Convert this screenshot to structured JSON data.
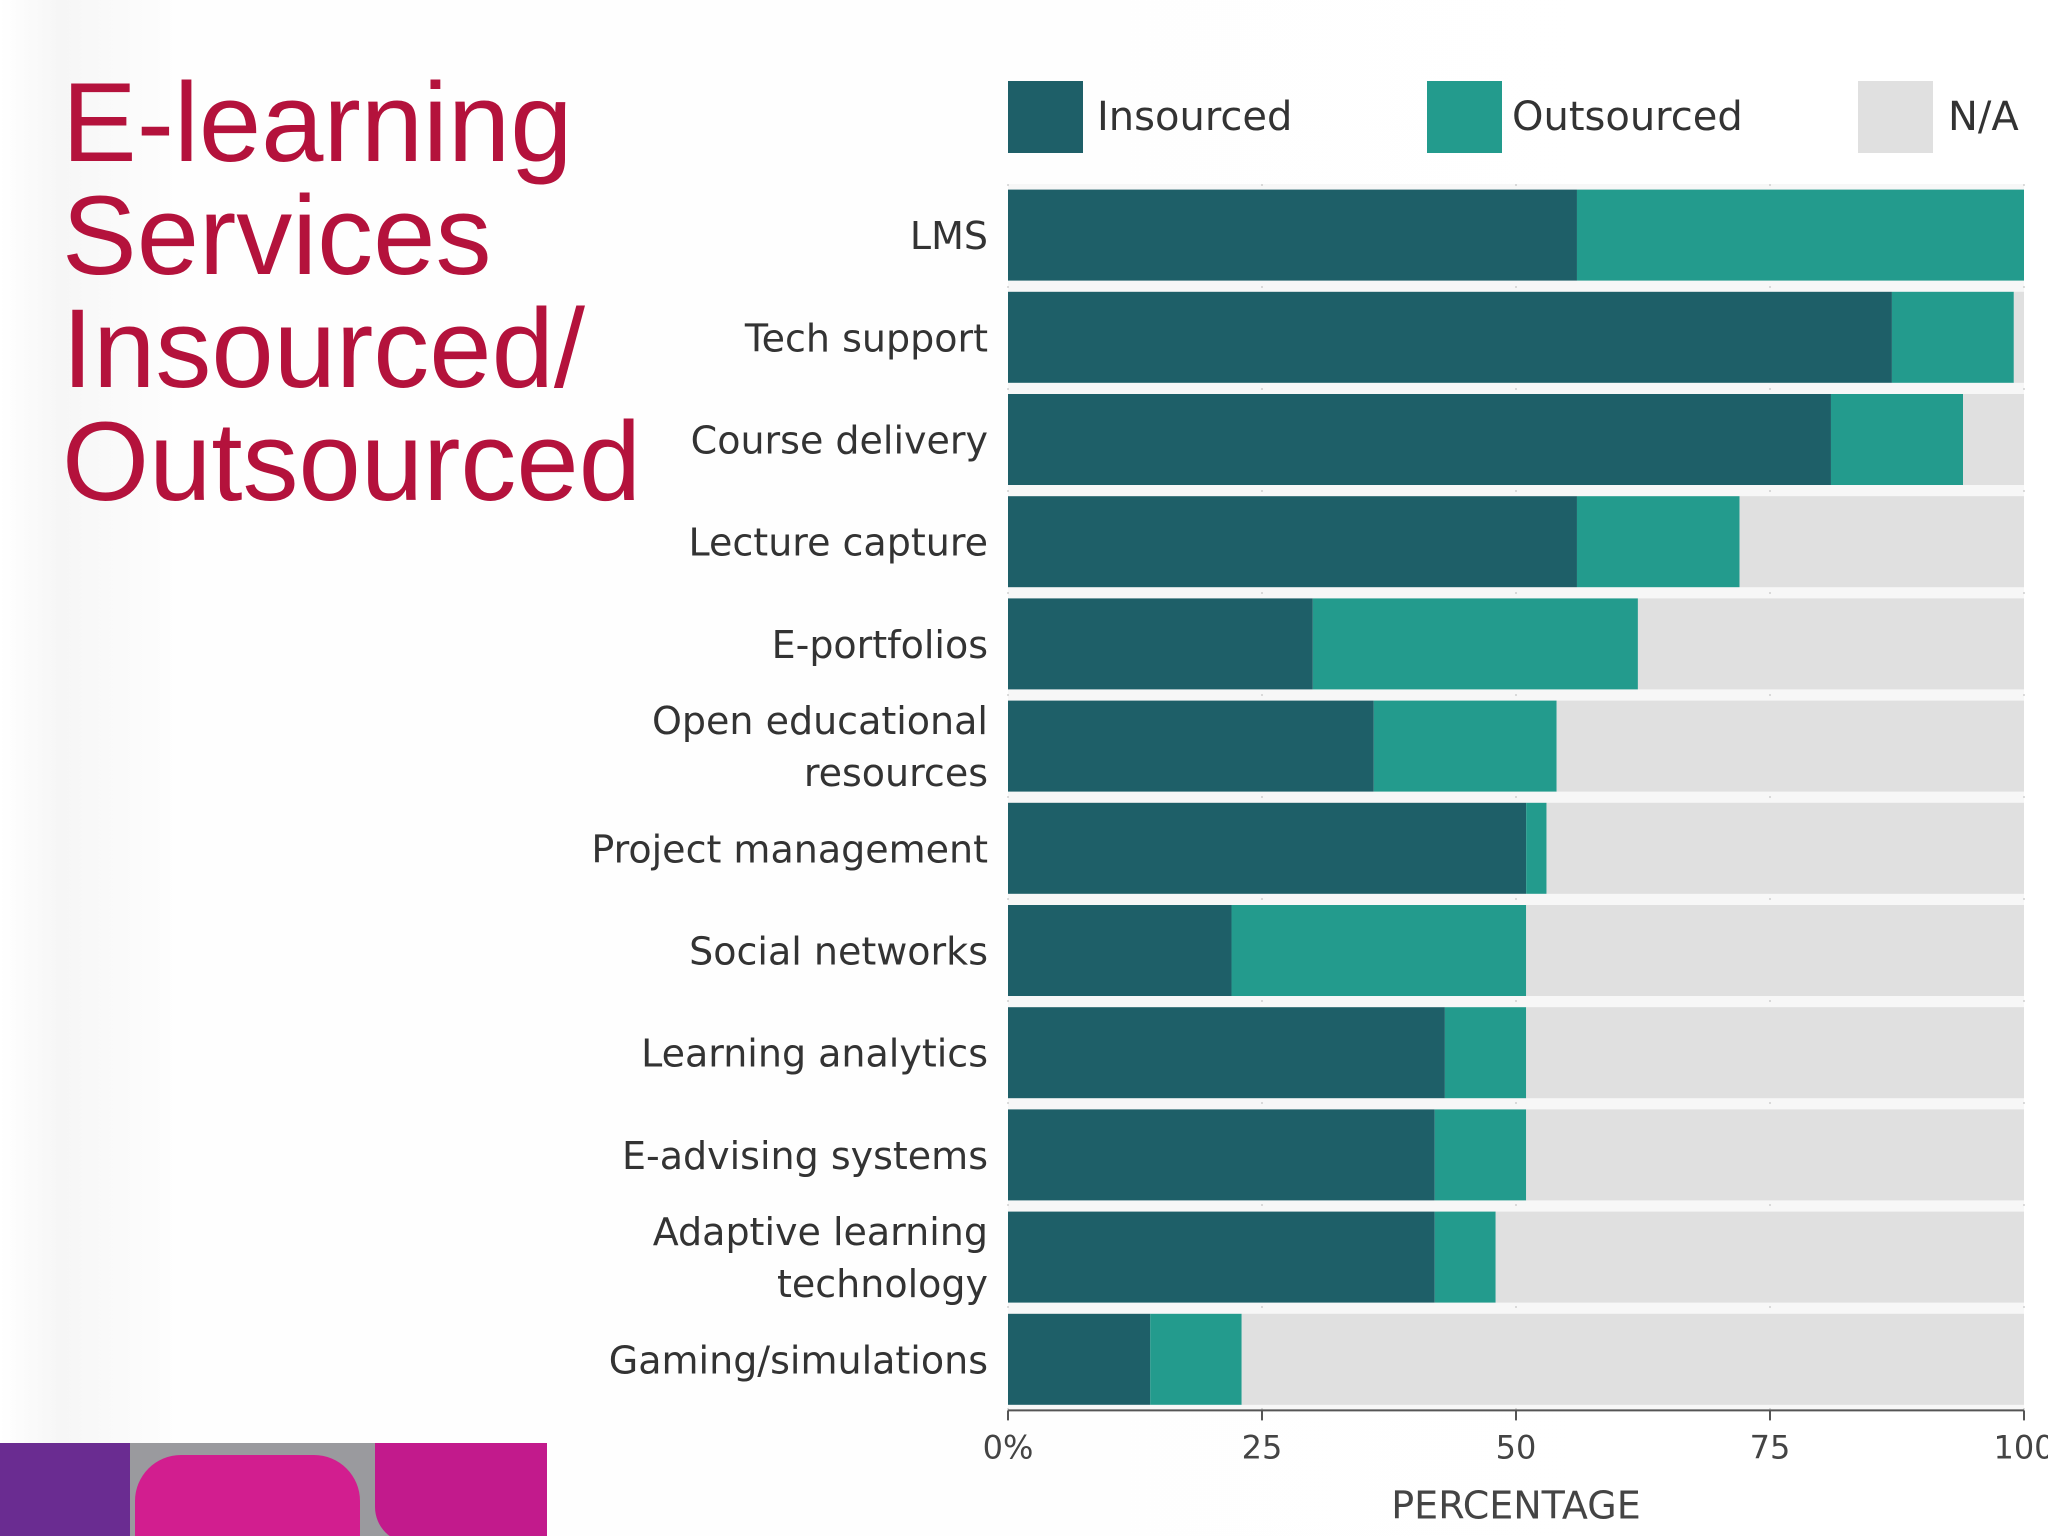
{
  "slide": {
    "title_lines": [
      "E-learning",
      "Services",
      "Insourced/",
      "Outsourced"
    ]
  },
  "colors": {
    "title": "#b4123c",
    "insourced": "#1e5f68",
    "outsourced": "#239b8d",
    "na": "#e0e0e0"
  },
  "chart_data": {
    "type": "bar",
    "orientation": "horizontal",
    "stacked": true,
    "categories": [
      "LMS",
      "Tech support",
      "Course delivery",
      "Lecture capture",
      "E-portfolios",
      "Open educational resources",
      "Project management",
      "Social networks",
      "Learning analytics",
      "E-advising systems",
      "Adaptive learning technology",
      "Gaming/simulations"
    ],
    "category_lines": [
      [
        "LMS"
      ],
      [
        "Tech support"
      ],
      [
        "Course delivery"
      ],
      [
        "Lecture capture"
      ],
      [
        "E-portfolios"
      ],
      [
        "Open educational",
        "resources"
      ],
      [
        "Project management"
      ],
      [
        "Social networks"
      ],
      [
        "Learning analytics"
      ],
      [
        "E-advising systems"
      ],
      [
        "Adaptive learning",
        "technology"
      ],
      [
        "Gaming/simulations"
      ]
    ],
    "series": [
      {
        "name": "Insourced",
        "values": [
          56,
          87,
          81,
          56,
          30,
          36,
          51,
          22,
          43,
          42,
          42,
          14
        ]
      },
      {
        "name": "Outsourced",
        "values": [
          44,
          12,
          13,
          16,
          32,
          18,
          2,
          29,
          8,
          9,
          6,
          9
        ]
      },
      {
        "name": "N/A",
        "values": [
          0,
          1,
          6,
          28,
          38,
          46,
          47,
          49,
          49,
          49,
          52,
          77
        ]
      }
    ],
    "xlim": [
      0,
      100
    ],
    "xticks": [
      "0%",
      "25",
      "50",
      "75",
      "100"
    ],
    "xlabel": "PERCENTAGE",
    "legend_position": "top",
    "grid": true
  }
}
